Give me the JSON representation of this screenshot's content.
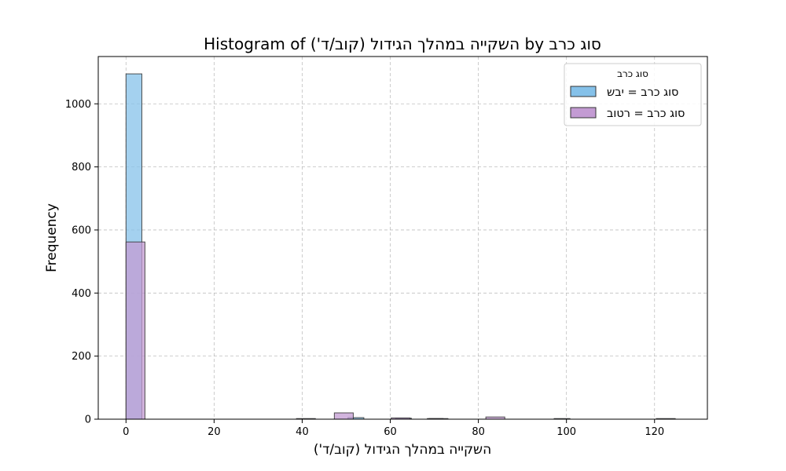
{
  "chart_data": {
    "type": "histogram",
    "title": "Histogram of השקייה במהלך הגידול (קוב/ד') by סוג כרב",
    "xlabel": "השקייה במהלך הגידול (קוב/ד')",
    "ylabel": "Frequency",
    "xlim": [
      -6.3,
      132
    ],
    "ylim": [
      0,
      1150
    ],
    "x_ticks": [
      0,
      20,
      40,
      60,
      80,
      100,
      120
    ],
    "y_ticks": [
      0,
      200,
      400,
      600,
      800,
      1000
    ],
    "grid": true,
    "legend": {
      "title": "סוג כרב",
      "placement": "top-right"
    },
    "series": [
      {
        "name": "סוג כרב = יבש",
        "color": "#85c1e9",
        "edge_color": "#333333",
        "bins": [
          {
            "x0": 0,
            "x1": 3.6,
            "count": 1095
          },
          {
            "x0": 50.4,
            "x1": 54.0,
            "count": 5
          },
          {
            "x0": 61.2,
            "x1": 64.8,
            "count": 3
          },
          {
            "x0": 68.4,
            "x1": 72.0,
            "count": 2
          },
          {
            "x0": 97.2,
            "x1": 100.8,
            "count": 2
          }
        ]
      },
      {
        "name": "סוג כרב = רטוב",
        "color": "#c39bd3",
        "edge_color": "#333333",
        "bins": [
          {
            "x0": 0,
            "x1": 4.3,
            "count": 562
          },
          {
            "x0": 38.7,
            "x1": 43.0,
            "count": 2
          },
          {
            "x0": 47.3,
            "x1": 51.6,
            "count": 20
          },
          {
            "x0": 60.2,
            "x1": 64.5,
            "count": 4
          },
          {
            "x0": 68.8,
            "x1": 73.1,
            "count": 2
          },
          {
            "x0": 81.7,
            "x1": 86.0,
            "count": 7
          },
          {
            "x0": 120.4,
            "x1": 124.7,
            "count": 2
          }
        ]
      }
    ]
  }
}
